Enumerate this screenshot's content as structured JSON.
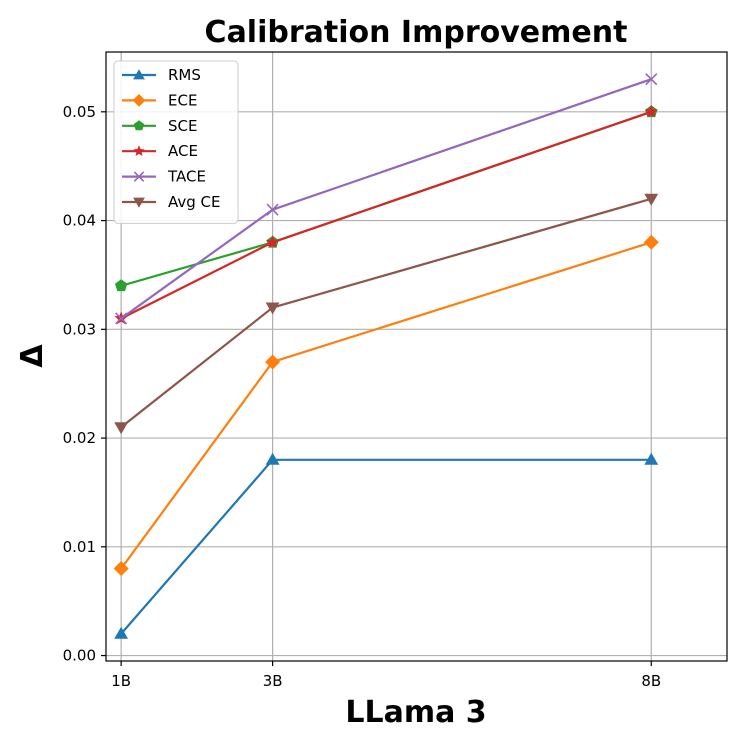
{
  "chart_data": {
    "type": "line",
    "title": "Calibration Improvement",
    "xlabel": "LLama 3",
    "ylabel": "Δ",
    "x": [
      1,
      3,
      8
    ],
    "x_tick_labels": [
      "1B",
      "3B",
      "8B"
    ],
    "xlim": [
      0.8,
      9.0
    ],
    "ylim": [
      -0.0005,
      0.0555
    ],
    "y_ticks": [
      0.0,
      0.01,
      0.02,
      0.03,
      0.04,
      0.05
    ],
    "y_tick_labels": [
      "0.00",
      "0.01",
      "0.02",
      "0.03",
      "0.04",
      "0.05"
    ],
    "grid": true,
    "legend_position": "top-left",
    "series": [
      {
        "name": "RMS",
        "values": [
          0.002,
          0.018,
          0.018
        ],
        "color": "#1f77b4",
        "marker": "triangle-up"
      },
      {
        "name": "ECE",
        "values": [
          0.008,
          0.027,
          0.038
        ],
        "color": "#ff7f0e",
        "marker": "diamond"
      },
      {
        "name": "SCE",
        "values": [
          0.034,
          0.038,
          0.05
        ],
        "color": "#2ca02c",
        "marker": "pentagon"
      },
      {
        "name": "ACE",
        "values": [
          0.031,
          0.038,
          0.05
        ],
        "color": "#d62728",
        "marker": "star"
      },
      {
        "name": "TACE",
        "values": [
          0.031,
          0.041,
          0.053
        ],
        "color": "#9467bd",
        "marker": "x"
      },
      {
        "name": "Avg CE",
        "values": [
          0.021,
          0.032,
          0.042
        ],
        "color": "#8c564b",
        "marker": "triangle-down"
      }
    ]
  }
}
